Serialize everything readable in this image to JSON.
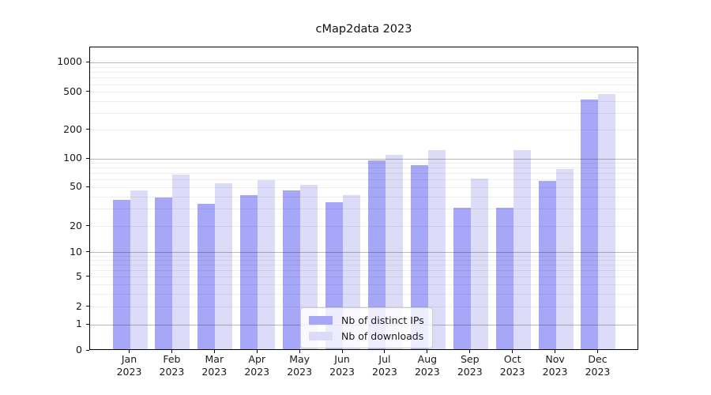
{
  "title": "cMap2data 2023",
  "chart_data": {
    "type": "bar",
    "title": "cMap2data 2023",
    "categories": [
      "Jan 2023",
      "Feb 2023",
      "Mar 2023",
      "Apr 2023",
      "May 2023",
      "Jun 2023",
      "Jul 2023",
      "Aug 2023",
      "Sep 2023",
      "Oct 2023",
      "Nov 2023",
      "Dec 2023"
    ],
    "series": [
      {
        "name": "Nb of distinct IPs",
        "color": "#a7a7f7",
        "values": [
          36,
          38,
          33,
          40,
          45,
          34,
          92,
          82,
          30,
          30,
          56,
          405
        ]
      },
      {
        "name": "Nb of downloads",
        "color": "#dcdcf8",
        "values": [
          45,
          65,
          53,
          57,
          51,
          40,
          105,
          120,
          59,
          120,
          75,
          460
        ]
      }
    ],
    "yscale": "symlog",
    "yticks": [
      0,
      1,
      2,
      5,
      10,
      20,
      50,
      100,
      200,
      500,
      1000
    ],
    "ylim": [
      0,
      1400
    ],
    "xlabel": "",
    "ylabel": "",
    "grid": true,
    "legend_position": "lower center"
  }
}
